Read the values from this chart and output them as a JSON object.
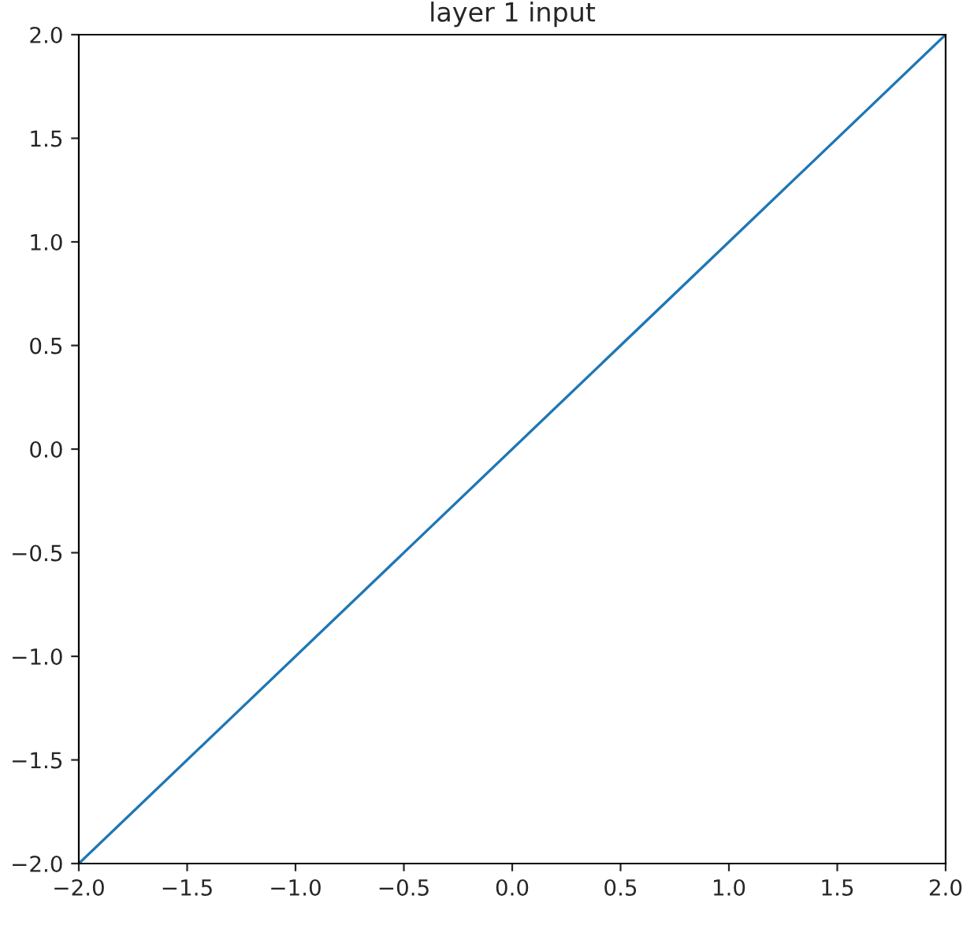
{
  "chart_data": {
    "type": "line",
    "title": "layer 1 input",
    "series": [
      {
        "color": "#1f77b4",
        "x": [
          -2.0,
          2.0
        ],
        "values": [
          -2.0,
          2.0
        ]
      }
    ],
    "xlim": [
      -2.0,
      2.0
    ],
    "ylim": [
      -2.0,
      2.0
    ],
    "xticks": [
      {
        "value": -2,
        "label": "−2.0"
      },
      {
        "value": -1.5,
        "label": "−1.5"
      },
      {
        "value": -1,
        "label": "−1.0"
      },
      {
        "value": -0.5,
        "label": "−0.5"
      },
      {
        "value": 0,
        "label": "0.0"
      },
      {
        "value": 0.5,
        "label": "0.5"
      },
      {
        "value": 1,
        "label": "1.0"
      },
      {
        "value": 1.5,
        "label": "1.5"
      },
      {
        "value": 2,
        "label": "2.0"
      }
    ],
    "yticks": [
      {
        "value": -2,
        "label": "−2.0"
      },
      {
        "value": -1.5,
        "label": "−1.5"
      },
      {
        "value": -1,
        "label": "−1.0"
      },
      {
        "value": -0.5,
        "label": "−0.5"
      },
      {
        "value": 0,
        "label": "0.0"
      },
      {
        "value": 0.5,
        "label": "0.5"
      },
      {
        "value": 1,
        "label": "1.0"
      },
      {
        "value": 1.5,
        "label": "1.5"
      },
      {
        "value": 2,
        "label": "2.0"
      }
    ],
    "grid": false,
    "legend": false
  }
}
